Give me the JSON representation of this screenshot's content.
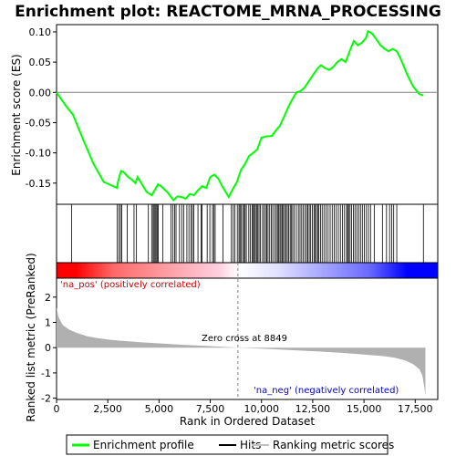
{
  "chart_data": {
    "title": "Enrichment plot: REACTOME_MRNA_PROCESSING",
    "es_panel": {
      "type": "line",
      "ylabel": "Enrichment score (ES)",
      "ylim": [
        -0.185,
        0.112
      ],
      "yticks": [
        0.1,
        0.05,
        0.0,
        -0.05,
        -0.1,
        -0.15
      ],
      "ytick_labels": [
        "0.10",
        "0.05",
        "0.00",
        "-0.05",
        "-0.10",
        "-0.15"
      ],
      "series": [
        {
          "color": "#00ff00",
          "points": [
            [
              0,
              0.0
            ],
            [
              450,
              -0.022
            ],
            [
              800,
              -0.037
            ],
            [
              1300,
              -0.078
            ],
            [
              1800,
              -0.118
            ],
            [
              2300,
              -0.148
            ],
            [
              2950,
              -0.158
            ],
            [
              3000,
              -0.148
            ],
            [
              3100,
              -0.135
            ],
            [
              3150,
              -0.13
            ],
            [
              3250,
              -0.131
            ],
            [
              3500,
              -0.14
            ],
            [
              3700,
              -0.145
            ],
            [
              3850,
              -0.15
            ],
            [
              3950,
              -0.14
            ],
            [
              4100,
              -0.148
            ],
            [
              4400,
              -0.165
            ],
            [
              4650,
              -0.17
            ],
            [
              4750,
              -0.164
            ],
            [
              4850,
              -0.158
            ],
            [
              4950,
              -0.152
            ],
            [
              5100,
              -0.155
            ],
            [
              5400,
              -0.165
            ],
            [
              5700,
              -0.178
            ],
            [
              5900,
              -0.172
            ],
            [
              6100,
              -0.173
            ],
            [
              6300,
              -0.176
            ],
            [
              6500,
              -0.168
            ],
            [
              6700,
              -0.17
            ],
            [
              6900,
              -0.162
            ],
            [
              7100,
              -0.155
            ],
            [
              7300,
              -0.158
            ],
            [
              7500,
              -0.14
            ],
            [
              7700,
              -0.136
            ],
            [
              7900,
              -0.143
            ],
            [
              8100,
              -0.156
            ],
            [
              8400,
              -0.173
            ],
            [
              8600,
              -0.16
            ],
            [
              8800,
              -0.148
            ],
            [
              9000,
              -0.128
            ],
            [
              9200,
              -0.118
            ],
            [
              9400,
              -0.105
            ],
            [
              9600,
              -0.1
            ],
            [
              9800,
              -0.094
            ],
            [
              10000,
              -0.075
            ],
            [
              10200,
              -0.073
            ],
            [
              10500,
              -0.072
            ],
            [
              10700,
              -0.063
            ],
            [
              10900,
              -0.055
            ],
            [
              11100,
              -0.04
            ],
            [
              11300,
              -0.025
            ],
            [
              11500,
              -0.012
            ],
            [
              11700,
              0.0
            ],
            [
              11900,
              0.002
            ],
            [
              12100,
              0.008
            ],
            [
              12300,
              0.018
            ],
            [
              12500,
              0.028
            ],
            [
              12700,
              0.038
            ],
            [
              12900,
              0.045
            ],
            [
              13100,
              0.04
            ],
            [
              13300,
              0.037
            ],
            [
              13500,
              0.042
            ],
            [
              13700,
              0.05
            ],
            [
              13900,
              0.055
            ],
            [
              14100,
              0.05
            ],
            [
              14300,
              0.068
            ],
            [
              14500,
              0.085
            ],
            [
              14700,
              0.078
            ],
            [
              14900,
              0.082
            ],
            [
              15100,
              0.09
            ],
            [
              15200,
              0.101
            ],
            [
              15400,
              0.097
            ],
            [
              15600,
              0.088
            ],
            [
              15800,
              0.078
            ],
            [
              16000,
              0.072
            ],
            [
              16200,
              0.068
            ],
            [
              16400,
              0.072
            ],
            [
              16600,
              0.068
            ],
            [
              16800,
              0.055
            ],
            [
              17100,
              0.03
            ],
            [
              17400,
              0.01
            ],
            [
              17700,
              -0.003
            ],
            [
              17900,
              -0.005
            ]
          ]
        }
      ]
    },
    "hits_panel": {
      "type": "hits",
      "hit_positions": [
        740,
        2960,
        3050,
        3120,
        3180,
        3450,
        3780,
        3900,
        4480,
        4640,
        4710,
        4760,
        4810,
        4860,
        4910,
        4960,
        5190,
        5580,
        5680,
        5760,
        5830,
        6000,
        6110,
        6210,
        6360,
        6460,
        6560,
        6630,
        6700,
        6900,
        7050,
        7100,
        7350,
        7480,
        7610,
        7680,
        7740,
        8120,
        8530,
        8620,
        8700,
        8820,
        8900,
        8950,
        9000,
        9080,
        9140,
        9200,
        9260,
        9380,
        9450,
        9540,
        9600,
        9650,
        9700,
        9760,
        9820,
        9880,
        9950,
        10050,
        10120,
        10200,
        10260,
        10320,
        10400,
        10480,
        10550,
        10640,
        10720,
        10780,
        10840,
        10900,
        10950,
        11010,
        11070,
        11130,
        11200,
        11260,
        11330,
        11400,
        11450,
        11520,
        11600,
        11700,
        11800,
        11880,
        11960,
        12040,
        12120,
        12200,
        12260,
        12330,
        12400,
        12480,
        12560,
        12620,
        12680,
        12740,
        12800,
        12880,
        12960,
        13050,
        13150,
        13250,
        13350,
        13450,
        13550,
        13650,
        13750,
        13850,
        13950,
        14050,
        14150,
        14200,
        14250,
        14320,
        14400,
        14480,
        14560,
        14650,
        14740,
        14830,
        14920,
        15020,
        15120,
        15220,
        15320,
        15500,
        15900,
        16100,
        16250,
        16350,
        16450,
        16600,
        17900
      ]
    },
    "metric_panel": {
      "type": "area",
      "ylabel": "Ranked list metric (PreRanked)",
      "xlabel": "Rank in Ordered Dataset",
      "xlim": [
        0,
        18600
      ],
      "ylim": [
        -2.05,
        2.75
      ],
      "yticks": [
        2,
        1,
        0,
        -1,
        -2
      ],
      "ytick_labels": [
        "2",
        "1",
        "0",
        "-1",
        "-2"
      ],
      "xticks": [
        0,
        2500,
        5000,
        7500,
        10000,
        12500,
        15000,
        17500
      ],
      "xtick_labels": [
        "0",
        "2,500",
        "5,000",
        "7,500",
        "10,000",
        "12,500",
        "15,000",
        "17,500"
      ],
      "points": [
        [
          0,
          1.6
        ],
        [
          100,
          1.2
        ],
        [
          300,
          0.9
        ],
        [
          600,
          0.72
        ],
        [
          1000,
          0.58
        ],
        [
          1500,
          0.45
        ],
        [
          2000,
          0.38
        ],
        [
          2500,
          0.32
        ],
        [
          3000,
          0.28
        ],
        [
          4000,
          0.22
        ],
        [
          5000,
          0.17
        ],
        [
          6000,
          0.12
        ],
        [
          7000,
          0.08
        ],
        [
          8000,
          0.04
        ],
        [
          8849,
          0.0
        ],
        [
          10000,
          -0.04
        ],
        [
          11000,
          -0.08
        ],
        [
          12000,
          -0.12
        ],
        [
          13000,
          -0.16
        ],
        [
          14000,
          -0.21
        ],
        [
          15000,
          -0.27
        ],
        [
          16000,
          -0.34
        ],
        [
          16500,
          -0.4
        ],
        [
          17000,
          -0.5
        ],
        [
          17400,
          -0.65
        ],
        [
          17700,
          -0.85
        ],
        [
          17850,
          -1.1
        ],
        [
          17950,
          -1.6
        ],
        [
          18000,
          -1.9
        ]
      ],
      "zero_cross_label": "Zero cross at 8849",
      "zero_cross": 8849,
      "pos_label": "'na_pos' (positively correlated)",
      "neg_label": "'na_neg' (negatively correlated)"
    },
    "legend": {
      "items": [
        {
          "label": "Enrichment profile",
          "color": "#00ff00"
        },
        {
          "label": "Hits",
          "color": "#000000"
        },
        {
          "label": "Ranking metric scores",
          "color": "#c0c0c0"
        }
      ]
    },
    "colors": {
      "pos": "#ff0000",
      "neg": "#0000ff",
      "neutral": "#ffffff",
      "pos_label": "#cc0000",
      "neg_label": "#0000cc",
      "metric_fill": "#b0b0b0",
      "zero_line": "#808080"
    }
  }
}
